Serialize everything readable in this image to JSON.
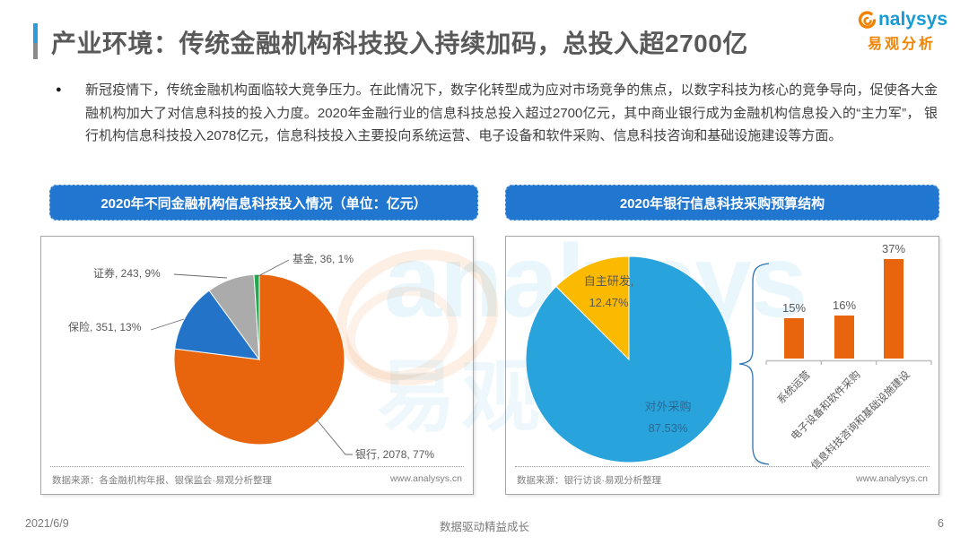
{
  "header": {
    "title": "产业环境：传统金融机构科技投入持续加码，总投入超2700亿",
    "brand": {
      "name": "analysys",
      "name_rest": "nalysys",
      "name_cn": "易观分析"
    }
  },
  "summary": {
    "text": "新冠疫情下，传统金融机构面临较大竞争压力。在此情况下，数字化转型成为应对市场竞争的焦点，以数字科技为核心的竞争导向，促使各大金融机构加大了对信息科技的投入力度。2020年金融行业的信息科技总投入超过2700亿元，其中商业银行成为金融机构信息投入的“主力军”， 银行机构信息科技投入2078亿元，信息科技投入主要投向系统运营、电子设备和软件采购、信息科技咨询和基础设施建设等方面。"
  },
  "left_panel": {
    "header": "2020年不同金融机构信息科技投入情况（单位：亿元）",
    "source": "数据来源：各金融机构年报、银保监会·易观分析整理",
    "site": "www.analysys.cn"
  },
  "right_panel": {
    "header": "2020年银行信息科技采购预算结构",
    "source": "数据来源：银行访谈·易观分析整理",
    "site": "www.analysys.cn"
  },
  "watermark": {
    "text1": "analysys",
    "text2": "易观分析"
  },
  "footer": {
    "date": "2021/6/9",
    "slogan": "数据驱动精益成长",
    "page": "6"
  },
  "chart_data": [
    {
      "type": "pie",
      "title": "2020年不同金融机构信息科技投入情况（单位：亿元）",
      "unit": "亿元",
      "slices": [
        {
          "name": "银行",
          "value": 2078,
          "pct": 77,
          "color": "#E8650D",
          "label": "银行, 2078, 77%"
        },
        {
          "name": "保险",
          "value": 351,
          "pct": 13,
          "color": "#2374C9",
          "label": "保险, 351, 13%"
        },
        {
          "name": "证券",
          "value": 243,
          "pct": 9,
          "color": "#ABABAB",
          "label": "证券, 243, 9%"
        },
        {
          "name": "基金",
          "value": 36,
          "pct": 1,
          "color": "#21A94B",
          "label": "基金, 36, 1%"
        }
      ]
    },
    {
      "type": "pie+bar",
      "title": "2020年银行信息科技采购预算结构",
      "pie": {
        "slices": [
          {
            "name": "对外采购",
            "pct": 87.53,
            "pct_label": "87.53%",
            "color": "#29A3DC"
          },
          {
            "name": "自主研发",
            "pct": 12.47,
            "pct_label": "12.47%",
            "color": "#FBB900",
            "name_label": "自主研发,"
          }
        ]
      },
      "bar": {
        "categories": [
          "系统运营",
          "电子设备和软件采购",
          "信息科技咨询和基础设施建设"
        ],
        "values": [
          15,
          16,
          37
        ],
        "value_labels": [
          "15%",
          "16%",
          "37%"
        ],
        "bar_color": "#E8650D",
        "ylim": [
          0,
          40
        ]
      }
    }
  ]
}
